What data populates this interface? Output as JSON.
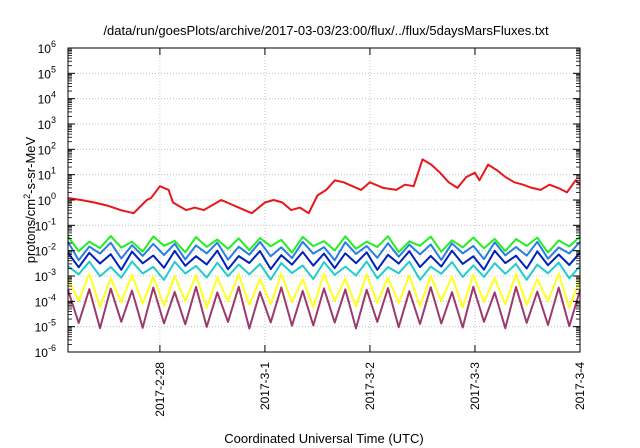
{
  "chart_data": {
    "type": "line",
    "title": "/data/run/goesPlots/archive/2017-03-03/23:00/flux/../flux/5daysMarsFluxes.txt",
    "xlabel": "Coordinated Universal Time (UTC)",
    "ylabel": {
      "prefix": "protons/cm",
      "sup": "2",
      "suffix": "-s-sr-MeV"
    },
    "y_scale": "log",
    "ylim": [
      1e-06,
      1000000.0
    ],
    "y_ticks": [
      {
        "exp": "-6",
        "value": 1e-06
      },
      {
        "exp": "-5",
        "value": 1e-05
      },
      {
        "exp": "-4",
        "value": 0.0001
      },
      {
        "exp": "-3",
        "value": 0.001
      },
      {
        "exp": "-2",
        "value": 0.01
      },
      {
        "exp": "-1",
        "value": 0.1
      },
      {
        "exp": "0",
        "value": 1
      },
      {
        "exp": "1",
        "value": 10
      },
      {
        "exp": "2",
        "value": 100
      },
      {
        "exp": "3",
        "value": 1000
      },
      {
        "exp": "4",
        "value": 10000
      },
      {
        "exp": "5",
        "value": 100000
      },
      {
        "exp": "6",
        "value": 1000000
      }
    ],
    "y_tick_base": "10",
    "xlim": [
      "2017-02-27 03:00",
      "2017-03-04 00:00"
    ],
    "x_ticks": [
      "2017-2-28",
      "2017-3-1",
      "2017-3-2",
      "2017-3-3",
      "2017-3-4"
    ],
    "grid": true,
    "legend": "none",
    "series": [
      {
        "color": "#e8171b",
        "x": [
          "2017-02-27 03:00",
          "2017-02-27 06:00",
          "2017-02-27 09:00",
          "2017-02-27 12:00",
          "2017-02-27 15:00",
          "2017-02-27 18:00",
          "2017-02-27 21:00",
          "2017-02-27 22:00",
          "2017-02-28 00:00",
          "2017-02-28 02:00",
          "2017-02-28 03:00",
          "2017-02-28 06:00",
          "2017-02-28 08:00",
          "2017-02-28 10:00",
          "2017-02-28 14:00",
          "2017-02-28 18:00",
          "2017-02-28 21:00",
          "2017-03-01 00:00",
          "2017-03-01 02:00",
          "2017-03-01 04:00",
          "2017-03-01 06:00",
          "2017-03-01 08:00",
          "2017-03-01 10:00",
          "2017-03-01 12:00",
          "2017-03-01 14:00",
          "2017-03-01 16:00",
          "2017-03-01 18:00",
          "2017-03-01 20:00",
          "2017-03-01 22:00",
          "2017-03-02 00:00",
          "2017-03-02 03:00",
          "2017-03-02 06:00",
          "2017-03-02 08:00",
          "2017-03-02 10:00",
          "2017-03-02 12:00",
          "2017-03-02 14:00",
          "2017-03-02 16:00",
          "2017-03-02 18:00",
          "2017-03-02 20:00",
          "2017-03-02 22:00",
          "2017-03-03 00:00",
          "2017-03-03 01:00",
          "2017-03-03 03:00",
          "2017-03-03 05:00",
          "2017-03-03 07:00",
          "2017-03-03 09:00",
          "2017-03-03 11:00",
          "2017-03-03 13:00",
          "2017-03-03 15:00",
          "2017-03-03 17:00",
          "2017-03-03 19:00",
          "2017-03-03 21:00",
          "2017-03-03 23:00",
          "2017-03-04 00:00"
        ],
        "values": [
          1.2,
          1.0,
          0.8,
          0.6,
          0.4,
          0.3,
          1.0,
          1.2,
          3.5,
          2.5,
          0.8,
          0.4,
          0.5,
          0.4,
          1.0,
          0.5,
          0.3,
          0.8,
          1.0,
          0.8,
          0.4,
          0.5,
          0.3,
          1.5,
          2.5,
          6.0,
          5.0,
          3.5,
          2.5,
          5.0,
          3.0,
          2.5,
          4.0,
          3.5,
          40,
          25,
          12,
          5,
          3,
          8,
          12,
          6,
          25,
          15,
          8,
          5,
          4,
          3,
          2.5,
          4.0,
          3.0,
          2.0,
          6.0,
          4.0
        ]
      },
      {
        "color": "#22ee22",
        "base": 0.03,
        "drop": 0.012
      },
      {
        "color": "#2a7de1",
        "base": 0.018,
        "drop": 0.006
      },
      {
        "color": "#0022bb",
        "base": 0.008,
        "drop": 0.0025
      },
      {
        "color": "#22cccc",
        "base": 0.003,
        "drop": 0.001
      },
      {
        "color": "#ffff22",
        "base": 0.001,
        "drop": 8e-05
      },
      {
        "color": "#9c3a6e",
        "base": 0.0003,
        "drop": 1.2e-05
      }
    ]
  }
}
